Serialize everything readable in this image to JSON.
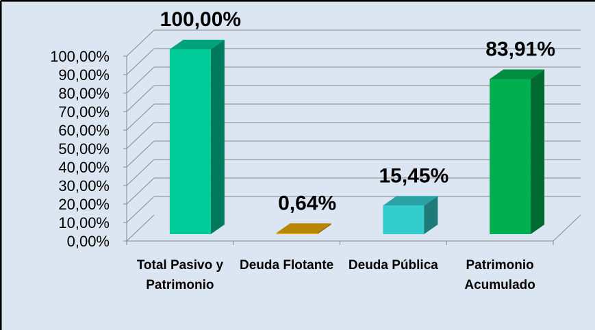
{
  "chart_data": {
    "type": "bar3d",
    "categories": [
      "Total Pasivo y Patrimonio",
      "Deuda Flotante",
      "Deuda Pública",
      "Patrimonio Acumulado"
    ],
    "values": [
      100,
      0.64,
      15.45,
      83.91
    ],
    "value_labels": [
      "100,00%",
      "0,64%",
      "15,45%",
      "83,91%"
    ],
    "colors": [
      "#00cc99",
      "#e6a800",
      "#33cccc",
      "#00b050"
    ],
    "ylim": [
      0,
      100
    ],
    "yticks": [
      {
        "value": 0,
        "label": "0,00%"
      },
      {
        "value": 10,
        "label": "10,00%"
      },
      {
        "value": 20,
        "label": "20,00%"
      },
      {
        "value": 30,
        "label": "30,00%"
      },
      {
        "value": 40,
        "label": "40,00%"
      },
      {
        "value": 50,
        "label": "50,00%"
      },
      {
        "value": 60,
        "label": "60,00%"
      },
      {
        "value": 70,
        "label": "70,00%"
      },
      {
        "value": 80,
        "label": "80,00%"
      },
      {
        "value": 90,
        "label": "90,00%"
      },
      {
        "value": 100,
        "label": "100,00%"
      }
    ],
    "grid": true
  }
}
